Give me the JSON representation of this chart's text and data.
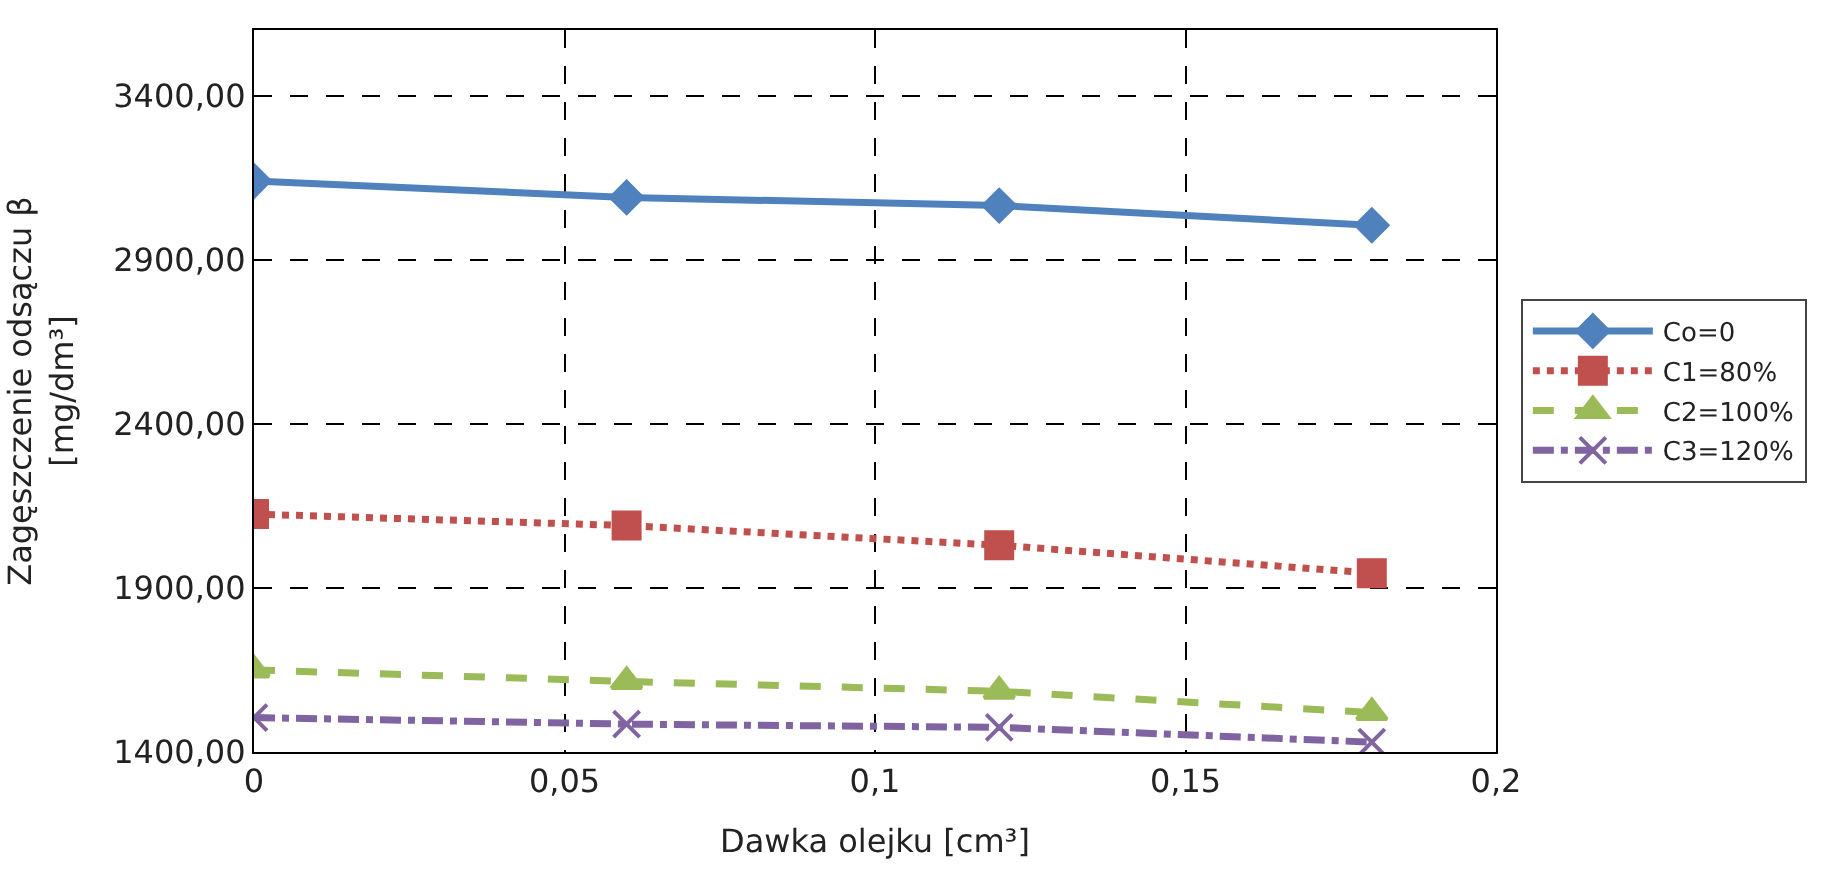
{
  "chart_data": {
    "type": "line",
    "xlabel": "Dawka olejku [cm³]",
    "ylabel": "Zagęszczenie odsączu β\n[mg/dm³]",
    "x": [
      0,
      0.06,
      0.12,
      0.18
    ],
    "series": [
      {
        "name": "Co=0",
        "color": "#4f81bd",
        "marker": "diamond",
        "line_style": "solid",
        "values": [
          3140,
          3090,
          3065,
          3005
        ]
      },
      {
        "name": "C1=80%",
        "color": "#c0504d",
        "marker": "square",
        "line_style": "dotted",
        "values": [
          2125,
          2090,
          2030,
          1945
        ]
      },
      {
        "name": "C2=100%",
        "color": "#9bbb59",
        "marker": "triangle",
        "line_style": "dashed",
        "values": [
          1650,
          1615,
          1585,
          1520
        ]
      },
      {
        "name": "C3=120%",
        "color": "#8064a2",
        "marker": "cross",
        "line_style": "dashdot",
        "values": [
          1505,
          1485,
          1475,
          1430
        ]
      }
    ],
    "xlim": [
      0,
      0.2
    ],
    "xticks": [
      0,
      {
        "value": 0.05,
        "label": "0,05"
      },
      {
        "value": 0.1,
        "label": "0,1"
      },
      {
        "value": 0.15,
        "label": "0,15"
      },
      {
        "value": 0.2,
        "label": "0,2"
      }
    ],
    "ylim": [
      1400,
      3600
    ],
    "yticks": [
      {
        "value": 1400,
        "label": "1400,00"
      },
      {
        "value": 1900,
        "label": "1900,00"
      },
      {
        "value": 2400,
        "label": "2400,00"
      },
      {
        "value": 2900,
        "label": "2900,00"
      },
      {
        "value": 3400,
        "label": "3400,00"
      }
    ],
    "grid": true,
    "legend": "right"
  }
}
